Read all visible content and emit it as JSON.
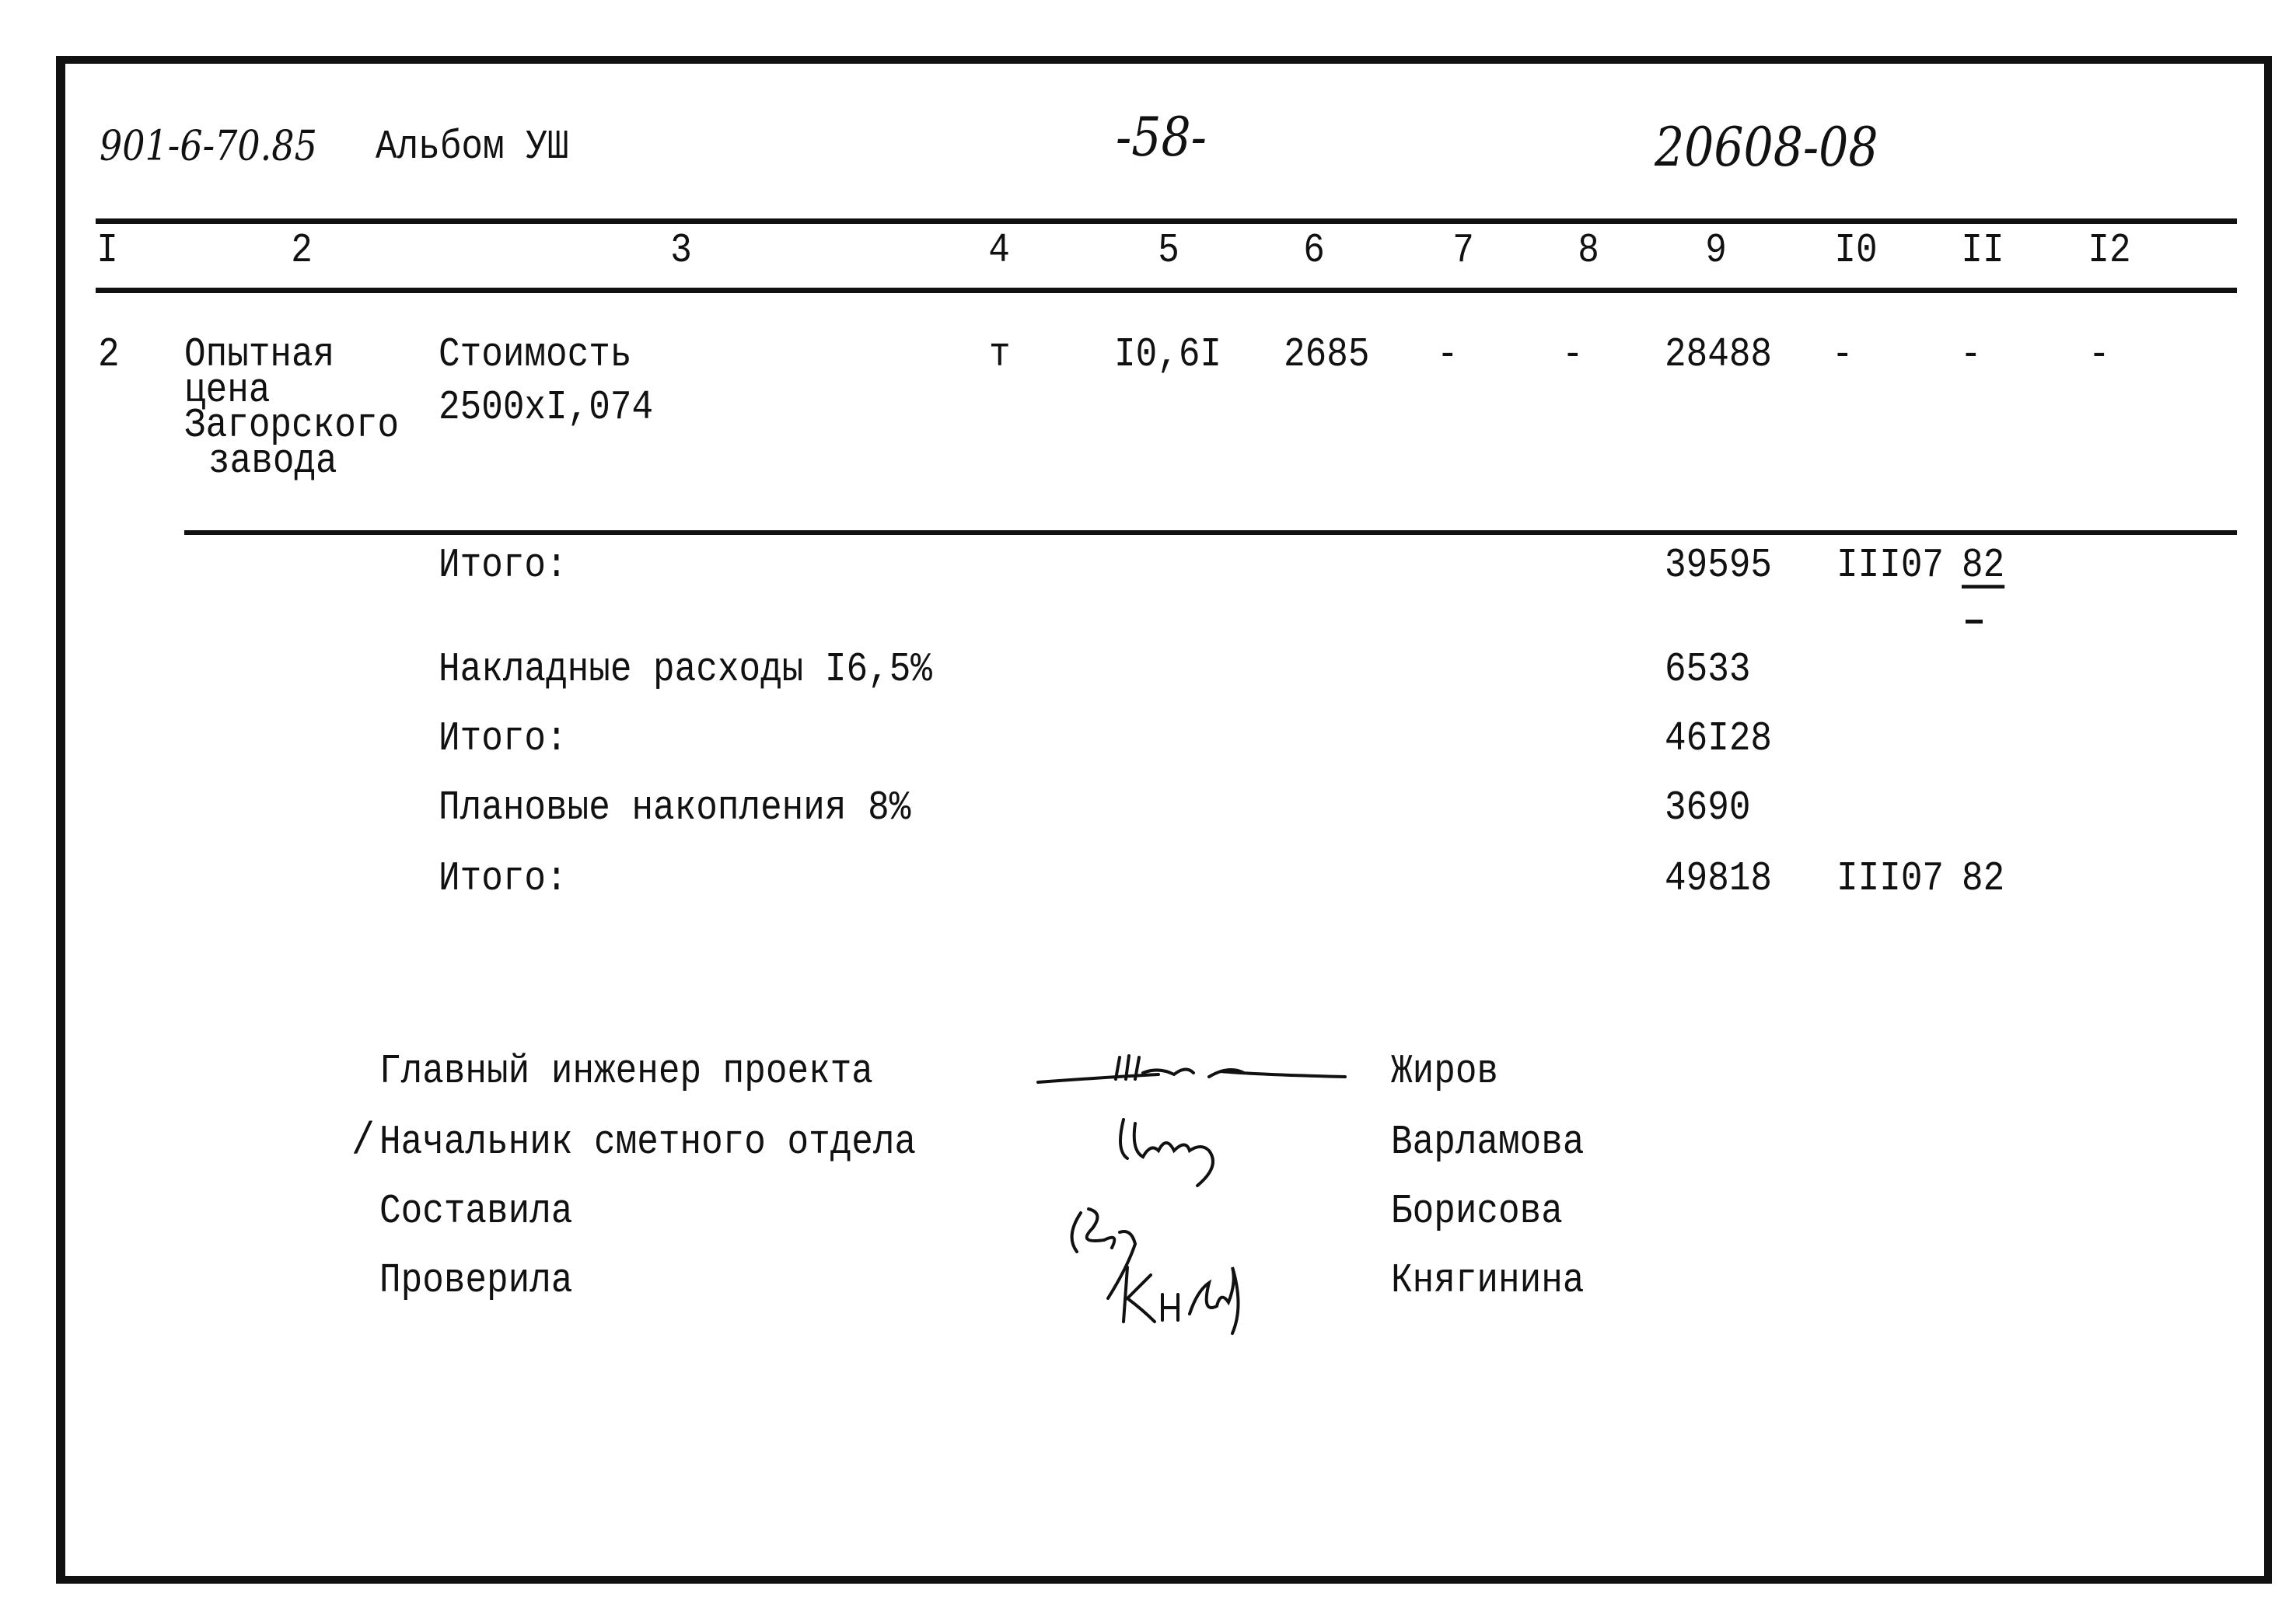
{
  "header": {
    "doc_code": "901-6-70.85",
    "album": "Альбом УШ",
    "page": "-58-",
    "number": "20608-08"
  },
  "columns": [
    "I",
    "2",
    "3",
    "4",
    "5",
    "6",
    "7",
    "8",
    "9",
    "I0",
    "II",
    "I2"
  ],
  "row": {
    "num": "2",
    "name_lines": [
      "Опытная",
      "цена",
      "Загорского",
      "завода"
    ],
    "desc_lines": [
      "Стоимость",
      "2500xI,074"
    ],
    "unit": "т",
    "qty": "I0,6I",
    "price": "2685",
    "col7": "-",
    "col8": "-",
    "total": "28488",
    "col10": "-",
    "col11": "-",
    "col12": "-"
  },
  "summary": [
    {
      "label": "Итого:",
      "col9": "39595",
      "col10": "III07",
      "col11": "82"
    },
    {
      "label": "Накладные расходы I6,5%",
      "col9": "6533"
    },
    {
      "label": "Итого:",
      "col9": "46I28"
    },
    {
      "label": "Плановые накопления 8%",
      "col9": "3690"
    },
    {
      "label": "Итого:",
      "col9": "49818",
      "col10": "III07",
      "col11": "82"
    }
  ],
  "signatures": [
    {
      "role": "Главный инженер проекта",
      "name": "Жиров"
    },
    {
      "role": "Начальник сметного отдела",
      "name": "Варламова"
    },
    {
      "role": "Составила",
      "name": "Борисова"
    },
    {
      "role": "Проверила",
      "name": "Княгинина"
    }
  ]
}
